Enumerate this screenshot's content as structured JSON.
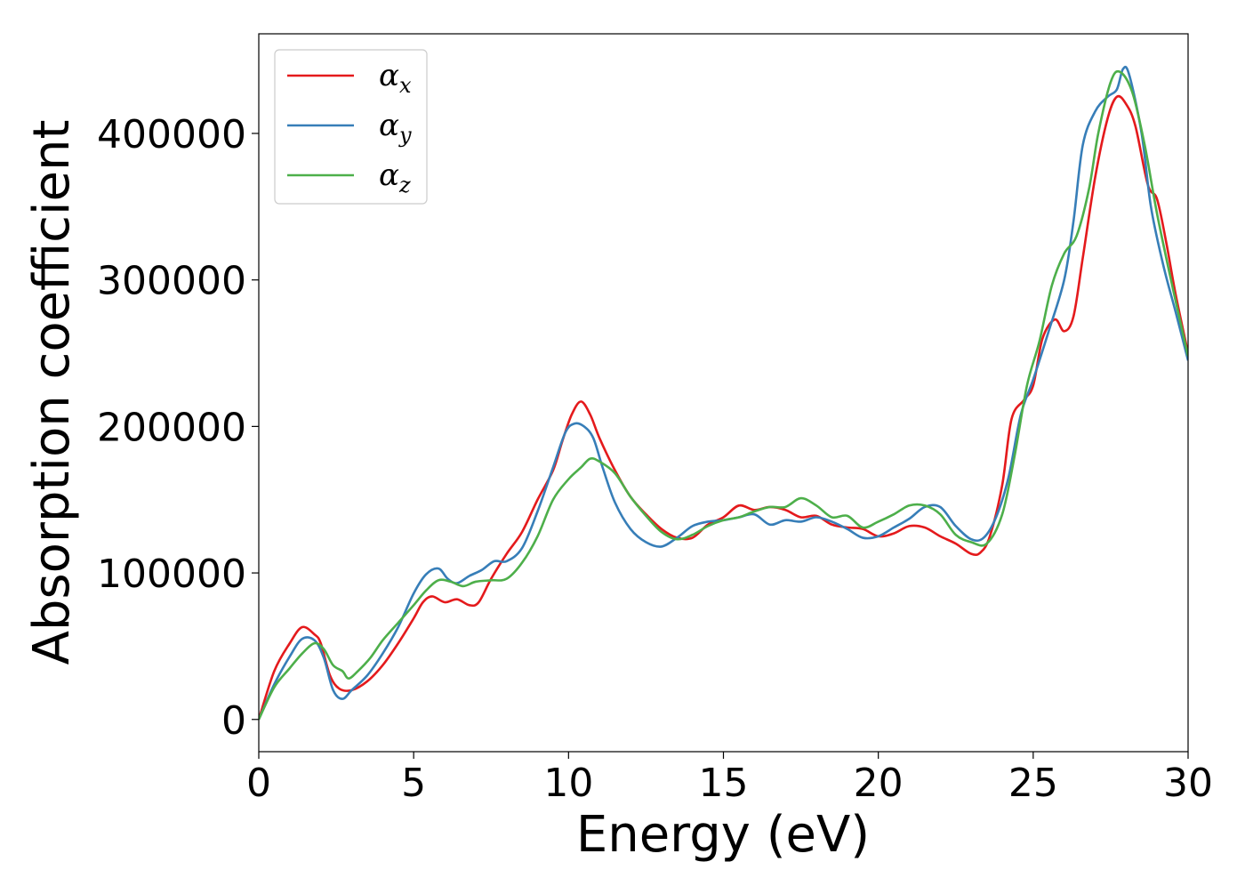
{
  "chart_data": {
    "type": "line",
    "xlabel": "Energy (eV)",
    "ylabel": "Absorption coefficient",
    "xlim": [
      0,
      30
    ],
    "ylim": [
      -22000,
      468000
    ],
    "xticks": [
      0,
      5,
      10,
      15,
      20,
      25,
      30
    ],
    "yticks": [
      0,
      100000,
      200000,
      300000,
      400000
    ],
    "grid": false,
    "legend_position": "top-left",
    "series": [
      {
        "name": "αx",
        "symbol": "α",
        "subscript": "x",
        "color": "#e41a1c",
        "points": [
          [
            0,
            0
          ],
          [
            0.5,
            33000
          ],
          [
            1,
            52000
          ],
          [
            1.4,
            63000
          ],
          [
            1.8,
            58000
          ],
          [
            2.0,
            52000
          ],
          [
            2.3,
            30000
          ],
          [
            2.6,
            21000
          ],
          [
            3.0,
            20000
          ],
          [
            3.5,
            26000
          ],
          [
            4.0,
            37000
          ],
          [
            4.5,
            52000
          ],
          [
            5.0,
            69000
          ],
          [
            5.3,
            80000
          ],
          [
            5.6,
            84000
          ],
          [
            6.0,
            80000
          ],
          [
            6.4,
            82000
          ],
          [
            6.8,
            78000
          ],
          [
            7.1,
            80000
          ],
          [
            7.5,
            96000
          ],
          [
            8.0,
            113000
          ],
          [
            8.5,
            128000
          ],
          [
            9.0,
            150000
          ],
          [
            9.5,
            170000
          ],
          [
            9.8,
            190000
          ],
          [
            10.1,
            208000
          ],
          [
            10.4,
            217000
          ],
          [
            10.7,
            208000
          ],
          [
            11.0,
            192000
          ],
          [
            11.5,
            170000
          ],
          [
            12.0,
            152000
          ],
          [
            12.5,
            140000
          ],
          [
            13.0,
            130000
          ],
          [
            13.5,
            124000
          ],
          [
            14.0,
            124000
          ],
          [
            14.5,
            133000
          ],
          [
            15.0,
            138000
          ],
          [
            15.5,
            146000
          ],
          [
            16.0,
            143000
          ],
          [
            16.5,
            145000
          ],
          [
            17.0,
            143000
          ],
          [
            17.5,
            138000
          ],
          [
            18.0,
            139000
          ],
          [
            18.5,
            133000
          ],
          [
            19.0,
            131000
          ],
          [
            19.5,
            130000
          ],
          [
            20.0,
            125000
          ],
          [
            20.5,
            127000
          ],
          [
            21.0,
            132000
          ],
          [
            21.5,
            131000
          ],
          [
            22.0,
            125000
          ],
          [
            22.5,
            120000
          ],
          [
            23.0,
            113000
          ],
          [
            23.3,
            114000
          ],
          [
            23.6,
            125000
          ],
          [
            24.0,
            160000
          ],
          [
            24.3,
            205000
          ],
          [
            24.7,
            218000
          ],
          [
            25.0,
            228000
          ],
          [
            25.3,
            260000
          ],
          [
            25.7,
            273000
          ],
          [
            26.0,
            265000
          ],
          [
            26.3,
            275000
          ],
          [
            26.6,
            315000
          ],
          [
            27.0,
            370000
          ],
          [
            27.4,
            410000
          ],
          [
            27.7,
            425000
          ],
          [
            28.0,
            420000
          ],
          [
            28.3,
            405000
          ],
          [
            28.7,
            365000
          ],
          [
            29.0,
            355000
          ],
          [
            29.3,
            325000
          ],
          [
            29.6,
            290000
          ],
          [
            30.0,
            250000
          ]
        ]
      },
      {
        "name": "αy",
        "symbol": "α",
        "subscript": "y",
        "color": "#377eb8",
        "points": [
          [
            0,
            0
          ],
          [
            0.5,
            24000
          ],
          [
            1.0,
            43000
          ],
          [
            1.4,
            55000
          ],
          [
            1.8,
            54000
          ],
          [
            2.1,
            42000
          ],
          [
            2.4,
            20000
          ],
          [
            2.7,
            14000
          ],
          [
            3.0,
            20000
          ],
          [
            3.5,
            30000
          ],
          [
            4.0,
            45000
          ],
          [
            4.5,
            63000
          ],
          [
            5.0,
            86000
          ],
          [
            5.4,
            99000
          ],
          [
            5.8,
            103000
          ],
          [
            6.1,
            96000
          ],
          [
            6.4,
            93000
          ],
          [
            6.8,
            98000
          ],
          [
            7.2,
            102000
          ],
          [
            7.6,
            108000
          ],
          [
            8.0,
            108000
          ],
          [
            8.5,
            117000
          ],
          [
            9.0,
            142000
          ],
          [
            9.5,
            172000
          ],
          [
            9.9,
            196000
          ],
          [
            10.2,
            202000
          ],
          [
            10.5,
            200000
          ],
          [
            10.8,
            192000
          ],
          [
            11.1,
            172000
          ],
          [
            11.5,
            148000
          ],
          [
            12.0,
            130000
          ],
          [
            12.5,
            121000
          ],
          [
            13.0,
            118000
          ],
          [
            13.5,
            124000
          ],
          [
            14.0,
            132000
          ],
          [
            14.5,
            135000
          ],
          [
            15.0,
            136000
          ],
          [
            15.5,
            138000
          ],
          [
            16.0,
            140000
          ],
          [
            16.5,
            133000
          ],
          [
            17.0,
            136000
          ],
          [
            17.5,
            135000
          ],
          [
            18.0,
            138000
          ],
          [
            18.5,
            135000
          ],
          [
            19.0,
            130000
          ],
          [
            19.5,
            124000
          ],
          [
            20.0,
            125000
          ],
          [
            20.5,
            131000
          ],
          [
            21.0,
            137000
          ],
          [
            21.5,
            145000
          ],
          [
            22.0,
            145000
          ],
          [
            22.5,
            132000
          ],
          [
            23.0,
            123000
          ],
          [
            23.4,
            124000
          ],
          [
            23.8,
            138000
          ],
          [
            24.2,
            165000
          ],
          [
            24.6,
            208000
          ],
          [
            25.0,
            232000
          ],
          [
            25.5,
            265000
          ],
          [
            26.0,
            300000
          ],
          [
            26.3,
            340000
          ],
          [
            26.6,
            392000
          ],
          [
            27.0,
            415000
          ],
          [
            27.4,
            425000
          ],
          [
            27.7,
            430000
          ],
          [
            27.9,
            444000
          ],
          [
            28.1,
            440000
          ],
          [
            28.5,
            400000
          ],
          [
            28.8,
            350000
          ],
          [
            29.2,
            310000
          ],
          [
            29.6,
            278000
          ],
          [
            30.0,
            245000
          ]
        ]
      },
      {
        "name": "αz",
        "symbol": "α",
        "subscript": "z",
        "color": "#4daf4a",
        "points": [
          [
            0,
            0
          ],
          [
            0.5,
            22000
          ],
          [
            1.0,
            35000
          ],
          [
            1.4,
            45000
          ],
          [
            1.8,
            52000
          ],
          [
            2.1,
            48000
          ],
          [
            2.4,
            37000
          ],
          [
            2.7,
            33000
          ],
          [
            2.9,
            28000
          ],
          [
            3.2,
            33000
          ],
          [
            3.6,
            42000
          ],
          [
            4.0,
            54000
          ],
          [
            4.5,
            66000
          ],
          [
            5.0,
            78000
          ],
          [
            5.4,
            88000
          ],
          [
            5.8,
            95000
          ],
          [
            6.2,
            94000
          ],
          [
            6.6,
            91000
          ],
          [
            7.0,
            94000
          ],
          [
            7.5,
            95000
          ],
          [
            8.0,
            96000
          ],
          [
            8.5,
            107000
          ],
          [
            9.0,
            125000
          ],
          [
            9.5,
            150000
          ],
          [
            10.0,
            164000
          ],
          [
            10.4,
            172000
          ],
          [
            10.7,
            178000
          ],
          [
            11.0,
            176000
          ],
          [
            11.5,
            168000
          ],
          [
            12.0,
            152000
          ],
          [
            12.5,
            139000
          ],
          [
            13.0,
            128000
          ],
          [
            13.5,
            123000
          ],
          [
            14.0,
            126000
          ],
          [
            14.5,
            132000
          ],
          [
            15.0,
            136000
          ],
          [
            15.5,
            138000
          ],
          [
            16.0,
            142000
          ],
          [
            16.5,
            145000
          ],
          [
            17.0,
            145000
          ],
          [
            17.5,
            151000
          ],
          [
            18.0,
            146000
          ],
          [
            18.5,
            138000
          ],
          [
            19.0,
            139000
          ],
          [
            19.5,
            131000
          ],
          [
            20.0,
            135000
          ],
          [
            20.5,
            140000
          ],
          [
            21.0,
            146000
          ],
          [
            21.5,
            146000
          ],
          [
            22.0,
            140000
          ],
          [
            22.5,
            126000
          ],
          [
            23.0,
            121000
          ],
          [
            23.5,
            120000
          ],
          [
            24.0,
            140000
          ],
          [
            24.4,
            180000
          ],
          [
            24.8,
            228000
          ],
          [
            25.2,
            258000
          ],
          [
            25.6,
            296000
          ],
          [
            26.0,
            318000
          ],
          [
            26.4,
            330000
          ],
          [
            26.8,
            362000
          ],
          [
            27.1,
            400000
          ],
          [
            27.5,
            435000
          ],
          [
            27.8,
            442000
          ],
          [
            28.2,
            428000
          ],
          [
            28.6,
            392000
          ],
          [
            29.0,
            345000
          ],
          [
            29.5,
            295000
          ],
          [
            30.0,
            248000
          ]
        ]
      }
    ]
  }
}
